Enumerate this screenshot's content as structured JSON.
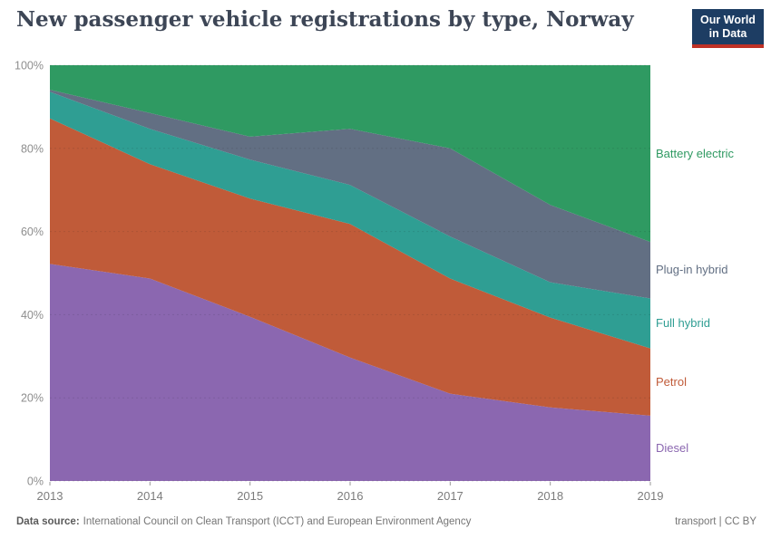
{
  "header": {
    "title": "New passenger vehicle registrations by type, Norway",
    "logo": {
      "line1": "Our World",
      "line2": "in Data",
      "bg_color": "#1d3d63",
      "bar_color": "#bf3125"
    }
  },
  "footer": {
    "source_label": "Data source:",
    "source_text": "International Council on Clean Transport (ICCT) and European Environment Agency",
    "license": "transport | CC BY"
  },
  "chart_data": {
    "type": "area",
    "stacked": true,
    "unit": "%",
    "title": "New passenger vehicle registrations by type, Norway",
    "x": [
      2013,
      2014,
      2015,
      2016,
      2017,
      2018,
      2019
    ],
    "xticks": [
      "2013",
      "2014",
      "2015",
      "2016",
      "2017",
      "2018",
      "2019"
    ],
    "ylim": [
      0,
      100
    ],
    "yticks": [
      {
        "value": 0,
        "label": "0%"
      },
      {
        "value": 20,
        "label": "20%"
      },
      {
        "value": 40,
        "label": "40%"
      },
      {
        "value": 60,
        "label": "60%"
      },
      {
        "value": 80,
        "label": "80%"
      },
      {
        "value": 100,
        "label": "100%"
      }
    ],
    "grid": "dashed-horizontal",
    "legend_position": "right",
    "series": [
      {
        "id": "diesel",
        "name": "Diesel",
        "color": "#8b67b0",
        "values": [
          52.2,
          48.7,
          39.5,
          29.7,
          21.0,
          17.7,
          15.7
        ]
      },
      {
        "id": "petrol",
        "name": "Petrol",
        "color": "#c05b39",
        "values": [
          35.0,
          27.5,
          28.4,
          32.1,
          27.7,
          21.6,
          16.2
        ]
      },
      {
        "id": "full-hybrid",
        "name": "Full hybrid",
        "color": "#2f9e93",
        "values": [
          6.4,
          8.5,
          9.4,
          9.4,
          10.1,
          8.5,
          12.0
        ]
      },
      {
        "id": "plug-in-hybrid",
        "name": "Plug-in hybrid",
        "color": "#626f83",
        "values": [
          0.5,
          3.8,
          5.5,
          13.5,
          21.2,
          18.6,
          13.6
        ]
      },
      {
        "id": "battery-electric",
        "name": "Battery electric",
        "color": "#2f9a62",
        "values": [
          5.9,
          11.5,
          17.2,
          15.3,
          20.0,
          33.6,
          42.5
        ]
      }
    ]
  }
}
